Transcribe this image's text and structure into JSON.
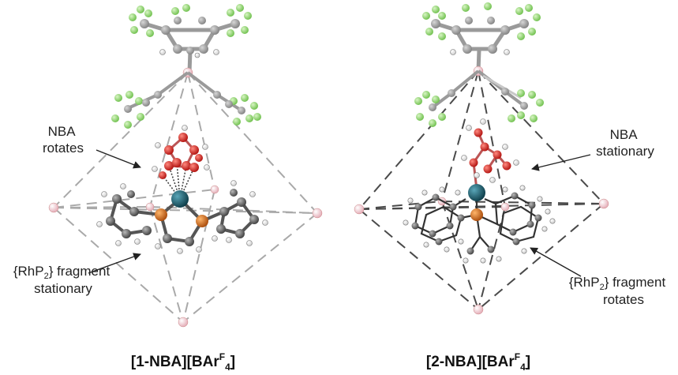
{
  "panels": [
    {
      "caption_main": "[1-NBA][BAr",
      "caption_sup": "F",
      "caption_sub": "4",
      "caption_end": "]",
      "upper_label": [
        "NBA",
        "rotates"
      ],
      "lower_label_line1_pre": "{RhP",
      "lower_label_line1_sub": "2",
      "lower_label_line1_post": "} fragment",
      "lower_label_line2": "stationary"
    },
    {
      "caption_main": "[2-NBA][BAr",
      "caption_sup": "F",
      "caption_sub": "4",
      "caption_end": "]",
      "upper_label": [
        "NBA",
        "stationary"
      ],
      "lower_label_line1_pre": "{RhP",
      "lower_label_line1_sub": "2",
      "lower_label_line1_post": "} fragment",
      "lower_label_line2": "rotates"
    }
  ],
  "colors": {
    "fluorine": "#8fd16a",
    "carbon": "#6e6e6e",
    "hydrogen": "#ffffff",
    "oxygen": "#e0201c",
    "rhodium": "#1b5c6c",
    "phosphorus": "#d9731f",
    "boron": "#f2c4cc",
    "dash_left": "#aaaaaa",
    "dash_right": "#444444"
  }
}
